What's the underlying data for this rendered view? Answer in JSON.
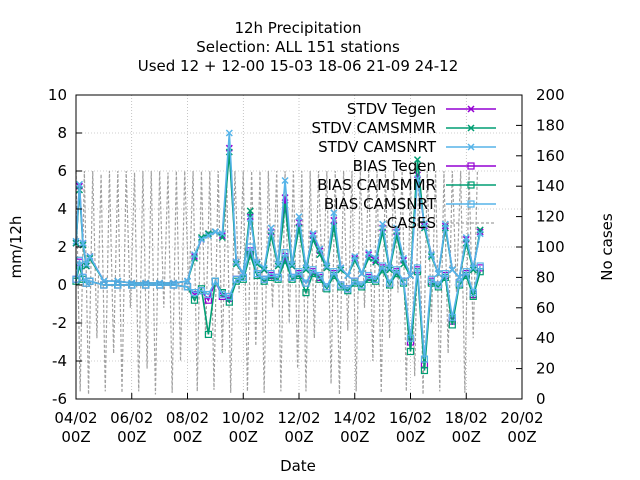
{
  "chart_data": {
    "type": "line",
    "title_lines": [
      "12h Precipitation",
      "Selection: ALL     151 stations",
      "Used  12 + 12-00 15-03 18-06 21-09 24-12"
    ],
    "xlabel": "Date",
    "ylabel": "mm/12h",
    "y2label": "No cases",
    "x_ticks": [
      {
        "date": "04/02",
        "hour": "00Z"
      },
      {
        "date": "06/02",
        "hour": "00Z"
      },
      {
        "date": "08/02",
        "hour": "00Z"
      },
      {
        "date": "10/02",
        "hour": "00Z"
      },
      {
        "date": "12/02",
        "hour": "00Z"
      },
      {
        "date": "14/02",
        "hour": "00Z"
      },
      {
        "date": "16/02",
        "hour": "00Z"
      },
      {
        "date": "18/02",
        "hour": "00Z"
      },
      {
        "date": "20/02",
        "hour": "00Z"
      }
    ],
    "xlim": [
      "04/02 00Z",
      "20/02 00Z"
    ],
    "ylim": [
      -6,
      10
    ],
    "y_ticks": [
      -6,
      -4,
      -2,
      0,
      2,
      4,
      6,
      8,
      10
    ],
    "y2lim": [
      0,
      200
    ],
    "y2_ticks": [
      0,
      20,
      40,
      60,
      80,
      100,
      120,
      140,
      160,
      180,
      200
    ],
    "grid": true,
    "legend_position": "top-right",
    "series": [
      {
        "name": "STDV Tegen",
        "color": "#9400d3",
        "marker": "x",
        "axis": "y1",
        "x_days": [
          0.0,
          0.125,
          0.25,
          0.375,
          0.5,
          1.0,
          1.5,
          2.0,
          2.5,
          3.0,
          3.5,
          4.0,
          4.25,
          4.5,
          4.75,
          5.0,
          5.25,
          5.5,
          5.75,
          6.0,
          6.25,
          6.5,
          6.75,
          7.0,
          7.25,
          7.5,
          7.75,
          8.0,
          8.25,
          8.5,
          8.75,
          9.0,
          9.25,
          9.5,
          9.75,
          10.0,
          10.25,
          10.5,
          10.75,
          11.0,
          11.25,
          11.5,
          11.75,
          12.0,
          12.25,
          12.5,
          12.75,
          13.0,
          13.25,
          13.5,
          13.75,
          14.0,
          14.25,
          14.5
        ],
        "values": [
          2.2,
          5.2,
          2.2,
          1.0,
          1.5,
          0.2,
          0.2,
          0.1,
          0.1,
          0.1,
          0.1,
          0.2,
          1.5,
          2.4,
          2.7,
          2.8,
          2.6,
          7.2,
          1.2,
          0.6,
          3.6,
          1.2,
          0.8,
          2.8,
          1.1,
          4.6,
          1.0,
          3.3,
          0.9,
          2.6,
          1.8,
          1.0,
          3.4,
          0.9,
          0.5,
          1.4,
          0.6,
          1.6,
          1.3,
          3.0,
          0.9,
          2.8,
          1.3,
          0.5,
          5.8,
          3.1,
          1.6,
          0.6,
          3.1,
          0.8,
          0.4,
          2.4,
          0.9,
          2.8
        ]
      },
      {
        "name": "STDV CAMSMMR",
        "color": "#009e73",
        "marker": "x",
        "axis": "y1",
        "x_days": [
          0.0,
          0.125,
          0.25,
          0.375,
          0.5,
          1.0,
          1.5,
          2.0,
          2.5,
          3.0,
          3.5,
          4.0,
          4.25,
          4.5,
          4.75,
          5.0,
          5.25,
          5.5,
          5.75,
          6.0,
          6.25,
          6.5,
          6.75,
          7.0,
          7.25,
          7.5,
          7.75,
          8.0,
          8.25,
          8.5,
          8.75,
          9.0,
          9.25,
          9.5,
          9.75,
          10.0,
          10.25,
          10.5,
          10.75,
          11.0,
          11.25,
          11.5,
          11.75,
          12.0,
          12.25,
          12.5,
          12.75,
          13.0,
          13.25,
          13.5,
          13.75,
          14.0,
          14.25,
          14.5
        ],
        "values": [
          2.2,
          5.0,
          2.1,
          1.0,
          1.4,
          0.2,
          0.2,
          0.1,
          0.1,
          0.1,
          0.1,
          0.2,
          1.4,
          2.5,
          2.7,
          2.8,
          2.5,
          7.0,
          1.1,
          0.6,
          3.9,
          1.1,
          0.8,
          2.6,
          1.0,
          4.2,
          1.0,
          3.0,
          0.8,
          2.4,
          1.6,
          0.9,
          3.1,
          0.8,
          0.5,
          1.3,
          0.6,
          1.4,
          1.2,
          2.8,
          0.8,
          2.6,
          1.1,
          0.5,
          6.6,
          3.0,
          1.5,
          0.6,
          3.0,
          0.8,
          0.4,
          2.2,
          0.8,
          2.9
        ]
      },
      {
        "name": "STDV CAMSNRT",
        "color": "#56b4e9",
        "marker": "x",
        "axis": "y1",
        "x_days": [
          0.0,
          0.125,
          0.25,
          0.375,
          0.5,
          1.0,
          1.5,
          2.0,
          2.5,
          3.0,
          3.5,
          4.0,
          4.25,
          4.5,
          4.75,
          5.0,
          5.25,
          5.5,
          5.75,
          6.0,
          6.25,
          6.5,
          6.75,
          7.0,
          7.25,
          7.5,
          7.75,
          8.0,
          8.25,
          8.5,
          8.75,
          9.0,
          9.25,
          9.5,
          9.75,
          10.0,
          10.25,
          10.5,
          10.75,
          11.0,
          11.25,
          11.5,
          11.75,
          12.0,
          12.25,
          12.5,
          12.75,
          13.0,
          13.25,
          13.5,
          13.75,
          14.0,
          14.25,
          14.5
        ],
        "values": [
          2.3,
          5.3,
          2.2,
          1.1,
          1.5,
          0.2,
          0.2,
          0.1,
          0.1,
          0.1,
          0.1,
          0.2,
          1.6,
          2.4,
          2.6,
          2.8,
          2.7,
          8.0,
          1.2,
          0.6,
          3.5,
          1.2,
          0.9,
          3.0,
          1.1,
          5.5,
          1.1,
          3.6,
          0.9,
          2.7,
          1.9,
          1.0,
          3.8,
          0.9,
          0.5,
          1.5,
          0.6,
          1.7,
          1.4,
          3.2,
          0.9,
          3.0,
          1.4,
          0.5,
          5.6,
          3.2,
          1.6,
          0.6,
          3.2,
          0.8,
          0.4,
          2.5,
          0.9,
          2.7
        ]
      },
      {
        "name": "BIAS Tegen",
        "color": "#9400d3",
        "marker": "square",
        "axis": "y1",
        "x_days": [
          0.0,
          0.125,
          0.25,
          0.375,
          0.5,
          1.0,
          1.5,
          2.0,
          2.5,
          3.0,
          3.5,
          4.0,
          4.25,
          4.5,
          4.75,
          5.0,
          5.25,
          5.5,
          5.75,
          6.0,
          6.25,
          6.5,
          6.75,
          7.0,
          7.25,
          7.5,
          7.75,
          8.0,
          8.25,
          8.5,
          8.75,
          9.0,
          9.25,
          9.5,
          9.75,
          10.0,
          10.25,
          10.5,
          10.75,
          11.0,
          11.25,
          11.5,
          11.75,
          12.0,
          12.25,
          12.5,
          12.75,
          13.0,
          13.25,
          13.5,
          13.75,
          14.0,
          14.25,
          14.5
        ],
        "values": [
          0.3,
          1.2,
          0.4,
          0.1,
          0.2,
          0.0,
          0.0,
          0.0,
          0.0,
          0.0,
          0.0,
          -0.1,
          -0.5,
          -0.3,
          -0.8,
          0.2,
          -0.6,
          -0.7,
          0.3,
          0.4,
          1.8,
          0.6,
          0.3,
          0.5,
          0.4,
          1.5,
          0.4,
          0.6,
          0.1,
          0.7,
          0.4,
          -0.1,
          0.6,
          0.0,
          -0.2,
          0.2,
          0.0,
          0.4,
          0.3,
          0.9,
          0.1,
          0.7,
          0.2,
          -3.0,
          0.8,
          -4.2,
          0.2,
          0.0,
          0.5,
          -1.9,
          0.1,
          0.6,
          -0.5,
          0.9
        ]
      },
      {
        "name": "BIAS CAMSMMR",
        "color": "#009e73",
        "marker": "square",
        "axis": "y1",
        "x_days": [
          0.0,
          0.125,
          0.25,
          0.375,
          0.5,
          1.0,
          1.5,
          2.0,
          2.5,
          3.0,
          3.5,
          4.0,
          4.25,
          4.5,
          4.75,
          5.0,
          5.25,
          5.5,
          5.75,
          6.0,
          6.25,
          6.5,
          6.75,
          7.0,
          7.25,
          7.5,
          7.75,
          8.0,
          8.25,
          8.5,
          8.75,
          9.0,
          9.25,
          9.5,
          9.75,
          10.0,
          10.25,
          10.5,
          10.75,
          11.0,
          11.25,
          11.5,
          11.75,
          12.0,
          12.25,
          12.5,
          12.75,
          13.0,
          13.25,
          13.5,
          13.75,
          14.0,
          14.25,
          14.5
        ],
        "values": [
          0.2,
          1.0,
          0.3,
          0.1,
          0.2,
          0.0,
          0.0,
          0.0,
          0.0,
          0.0,
          0.0,
          -0.1,
          -0.8,
          -0.2,
          -2.6,
          0.2,
          -0.4,
          -0.9,
          0.2,
          0.3,
          1.6,
          0.5,
          0.2,
          0.4,
          0.3,
          1.3,
          0.3,
          0.5,
          -0.4,
          0.6,
          0.3,
          -0.2,
          0.5,
          -0.1,
          -0.3,
          0.1,
          -0.1,
          0.3,
          0.2,
          0.8,
          0.0,
          0.6,
          0.1,
          -3.5,
          0.7,
          -4.5,
          0.1,
          -0.1,
          0.4,
          -2.1,
          0.0,
          0.5,
          -0.6,
          0.7
        ]
      },
      {
        "name": "BIAS CAMSNRT",
        "color": "#56b4e9",
        "marker": "square",
        "axis": "y1",
        "x_days": [
          0.0,
          0.125,
          0.25,
          0.375,
          0.5,
          1.0,
          1.5,
          2.0,
          2.5,
          3.0,
          3.5,
          4.0,
          4.25,
          4.5,
          4.75,
          5.0,
          5.25,
          5.5,
          5.75,
          6.0,
          6.25,
          6.5,
          6.75,
          7.0,
          7.25,
          7.5,
          7.75,
          8.0,
          8.25,
          8.5,
          8.75,
          9.0,
          9.25,
          9.5,
          9.75,
          10.0,
          10.25,
          10.5,
          10.75,
          11.0,
          11.25,
          11.5,
          11.75,
          12.0,
          12.25,
          12.5,
          12.75,
          13.0,
          13.25,
          13.5,
          13.75,
          14.0,
          14.25,
          14.5
        ],
        "values": [
          0.3,
          1.3,
          0.4,
          0.1,
          0.2,
          0.0,
          0.0,
          0.0,
          0.0,
          0.0,
          0.0,
          -0.1,
          -0.4,
          -0.3,
          -0.5,
          0.2,
          -0.5,
          -0.6,
          0.3,
          0.4,
          2.0,
          0.6,
          0.3,
          0.6,
          0.4,
          1.7,
          0.4,
          0.7,
          0.1,
          0.8,
          0.5,
          -0.1,
          0.7,
          0.0,
          -0.2,
          0.2,
          0.0,
          0.5,
          0.3,
          1.0,
          0.1,
          0.8,
          0.2,
          -2.8,
          0.9,
          -3.9,
          0.3,
          0.0,
          0.6,
          -1.7,
          0.1,
          0.7,
          -0.4,
          1.0
        ]
      },
      {
        "name": "CASES",
        "color": "#a0a0a0",
        "dash": true,
        "axis": "y2",
        "x_days": [
          0.0,
          0.15,
          0.3,
          0.45,
          0.6,
          0.75,
          0.9,
          1.05,
          1.2,
          1.35,
          1.5,
          1.65,
          1.8,
          1.95,
          2.1,
          2.25,
          2.4,
          2.55,
          2.7,
          2.85,
          3.0,
          3.15,
          3.3,
          3.45,
          3.6,
          3.75,
          3.9,
          4.05,
          4.2,
          4.35,
          4.5,
          4.65,
          4.8,
          4.95,
          5.1,
          5.25,
          5.4,
          5.55,
          5.7,
          5.85,
          6.0,
          6.15,
          6.3,
          6.45,
          6.6,
          6.75,
          6.9,
          7.05,
          7.2,
          7.35,
          7.5,
          7.65,
          7.8,
          7.95,
          8.1,
          8.25,
          8.4,
          8.55,
          8.7,
          8.85,
          9.0,
          9.15,
          9.3,
          9.45,
          9.6,
          9.75,
          9.9,
          10.05,
          10.2,
          10.35,
          10.5,
          10.65,
          10.8,
          10.95,
          11.1,
          11.25,
          11.4,
          11.55,
          11.7,
          11.85,
          12.0,
          12.15,
          12.3,
          12.45,
          12.6,
          12.75,
          12.9,
          13.05,
          13.2,
          13.35,
          13.5,
          13.65,
          13.8,
          13.95,
          14.1,
          14.25,
          14.4
        ],
        "values": [
          150,
          5,
          150,
          3,
          150,
          40,
          148,
          5,
          150,
          30,
          150,
          4,
          150,
          60,
          149,
          5,
          150,
          20,
          150,
          3,
          150,
          60,
          149,
          4,
          150,
          25,
          150,
          70,
          150,
          5,
          150,
          40,
          150,
          6,
          150,
          30,
          150,
          4,
          150,
          70,
          150,
          5,
          150,
          35,
          150,
          4,
          150,
          60,
          150,
          5,
          150,
          50,
          150,
          20,
          150,
          5,
          150,
          40,
          150,
          70,
          150,
          10,
          150,
          3,
          150,
          45,
          150,
          5,
          150,
          60,
          150,
          25,
          150,
          4,
          150,
          40,
          150,
          70,
          150,
          5,
          150,
          15,
          150,
          3,
          150,
          50,
          150,
          5,
          150,
          30,
          150,
          70,
          150,
          4,
          150,
          40,
          150
        ]
      }
    ]
  }
}
